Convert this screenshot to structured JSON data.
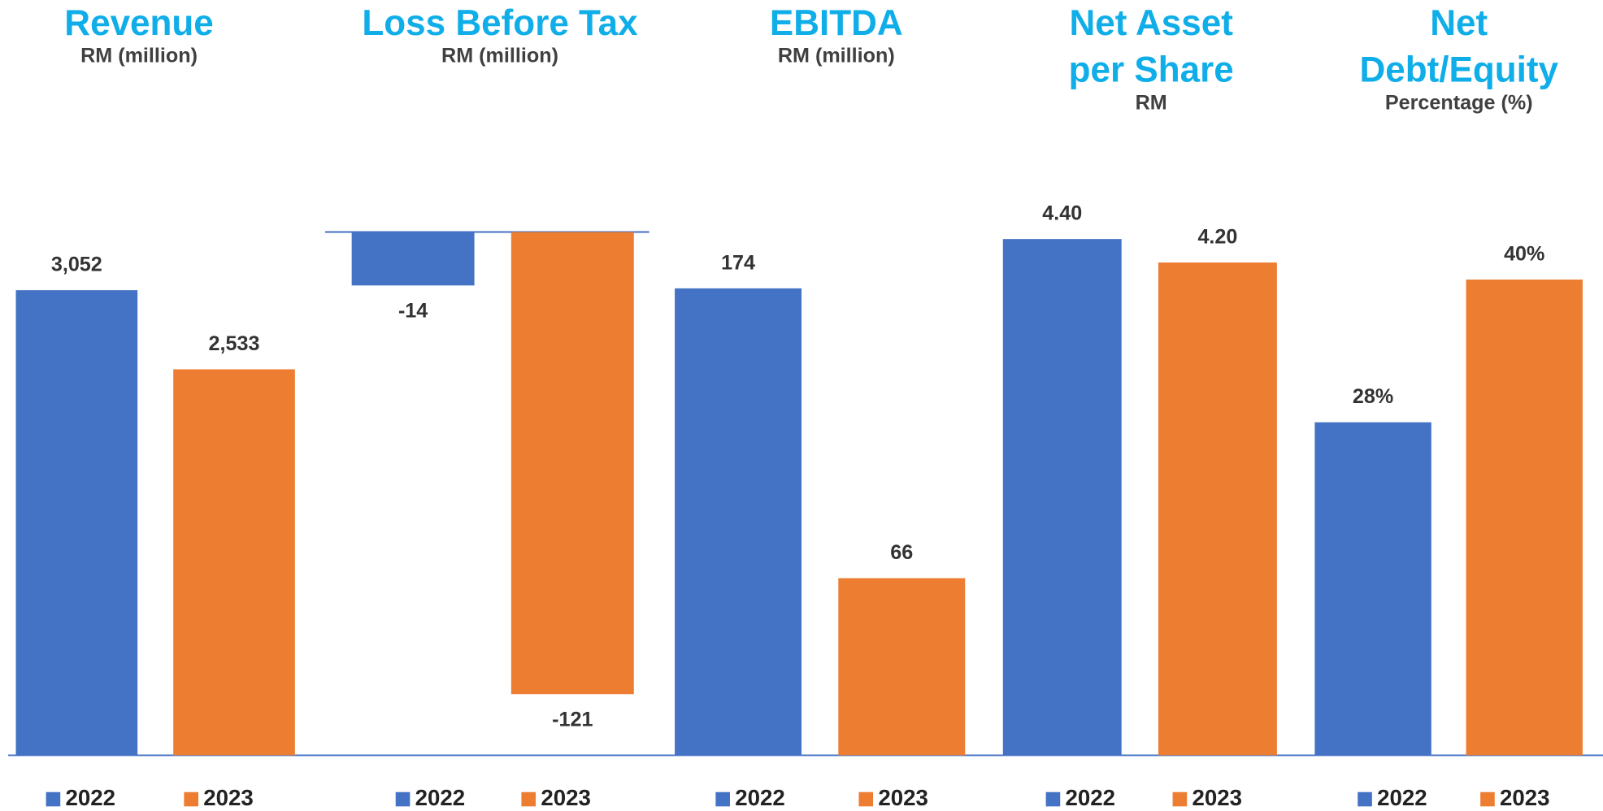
{
  "chart_data": [
    {
      "type": "bar",
      "title": "Revenue",
      "subtitle": "RM (million)",
      "ylim": [
        0,
        3434
      ],
      "series": [
        {
          "name": "2022",
          "color": "#4472c4",
          "values": [
            3052
          ],
          "value_labels": [
            "3,052"
          ]
        },
        {
          "name": "2023",
          "color": "#ed7d31",
          "values": [
            2533
          ],
          "value_labels": [
            "2,533"
          ]
        }
      ]
    },
    {
      "type": "bar",
      "title": "Loss Before Tax",
      "subtitle": "RM (million)",
      "ylim": [
        -137,
        0
      ],
      "series": [
        {
          "name": "2022",
          "color": "#4472c4",
          "values": [
            -14
          ]
        },
        {
          "name": "2023",
          "color": "#ed7d31",
          "values": [
            -121
          ]
        }
      ]
    },
    {
      "type": "bar",
      "title": "EBITDA",
      "subtitle": "RM (million)",
      "ylim": [
        0,
        195
      ],
      "series": [
        {
          "name": "2022",
          "color": "#4472c4",
          "values": [
            174
          ]
        },
        {
          "name": "2023",
          "color": "#ed7d31",
          "values": [
            66
          ]
        }
      ]
    },
    {
      "type": "bar",
      "title": "Net Asset per Share",
      "subtitle": "RM",
      "ylim": [
        0,
        4.46
      ],
      "series": [
        {
          "name": "2022",
          "color": "#4472c4",
          "values": [
            4.4
          ],
          "value_labels": [
            "4.40"
          ]
        },
        {
          "name": "2023",
          "color": "#ed7d31",
          "values": [
            4.2
          ],
          "value_labels": [
            "4.20"
          ]
        }
      ]
    },
    {
      "type": "bar",
      "title": "Net Debt/Equity",
      "subtitle": "Percentage (%)",
      "ylim": [
        0,
        44
      ],
      "series": [
        {
          "name": "2022",
          "color": "#4472c4",
          "values": [
            28
          ],
          "value_labels": [
            "28%"
          ]
        },
        {
          "name": "2023",
          "color": "#ed7d31",
          "values": [
            40
          ],
          "value_labels": [
            "40%"
          ]
        }
      ]
    }
  ]
}
